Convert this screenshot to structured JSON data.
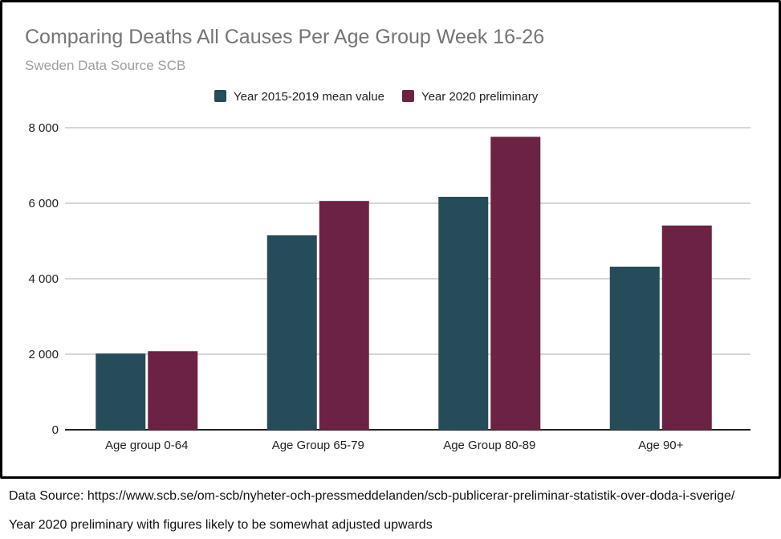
{
  "chart_data": {
    "type": "bar",
    "title": "Comparing Deaths All Causes Per Age Group Week 16-26",
    "subtitle": "Sweden Data Source SCB",
    "categories": [
      "Age group 0-64",
      "Age Group 65-79",
      "Age Group 80-89",
      "Age 90+"
    ],
    "series": [
      {
        "name": "Year 2015-2019 mean value",
        "color": "#264b59",
        "values": [
          2020,
          5150,
          6170,
          4320
        ]
      },
      {
        "name": "Year 2020 preliminary",
        "color": "#6b2243",
        "values": [
          2080,
          6060,
          7760,
          5410
        ]
      }
    ],
    "ylim": [
      0,
      8000
    ],
    "yticks": [
      0,
      2000,
      4000,
      6000,
      8000
    ],
    "ytick_labels": [
      "0",
      "2 000",
      "4 000",
      "6 000",
      "8 000"
    ],
    "xlabel": "",
    "ylabel": "",
    "grid": true,
    "legend_position": "top-center"
  },
  "captions": {
    "source": "Data Source: https://www.scb.se/om-scb/nyheter-och-pressmeddelanden/scb-publicerar-preliminar-statistik-over-doda-i-sverige/",
    "note": "Year 2020 preliminary with figures likely to be somewhat adjusted upwards"
  },
  "colors": {
    "title": "#757575",
    "subtitle": "#9e9e9e",
    "grid": "#c8c8c8",
    "axis": "#222222"
  }
}
